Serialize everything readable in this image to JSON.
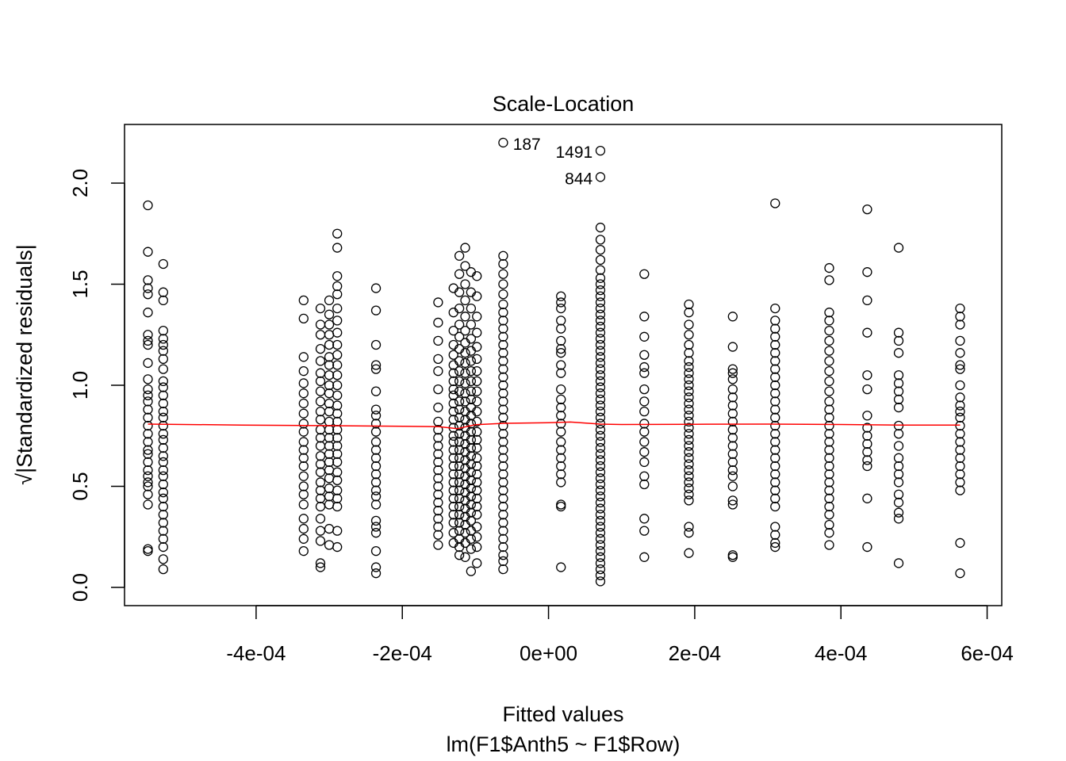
{
  "chart_data": {
    "type": "scatter",
    "title": "Scale-Location",
    "xlabel": "Fitted values",
    "subtitle": "lm(F1$Anth5 ~ F1$Row)",
    "ylabel": "√|Standardized residuals|",
    "xlim": [
      -0.00058,
      0.00062
    ],
    "ylim": [
      -0.09,
      2.29
    ],
    "x_ticks": [
      -0.0004,
      -0.0002,
      0,
      0.0002,
      0.0004,
      0.0006
    ],
    "x_tick_labels": [
      "-4e-04",
      "-2e-04",
      "0e+00",
      "2e-04",
      "4e-04",
      "6e-04"
    ],
    "y_ticks": [
      0.0,
      0.5,
      1.0,
      1.5,
      2.0
    ],
    "y_tick_labels": [
      "0.0",
      "0.5",
      "1.0",
      "1.5",
      "2.0"
    ],
    "grid": false,
    "colors": {
      "points": "#000000",
      "smoother": "#ff0000",
      "axes": "#000000"
    },
    "annotations": [
      {
        "label": "187",
        "x": -6.17e-05,
        "y": 2.2,
        "side": "right"
      },
      {
        "label": "1491",
        "x": 7.12e-05,
        "y": 2.16,
        "side": "left"
      },
      {
        "label": "844",
        "x": 7.12e-05,
        "y": 2.03,
        "side": "left"
      }
    ],
    "fitted_groups": [
      {
        "x": -0.000548,
        "y": [
          1.89,
          1.66,
          1.52,
          1.48,
          1.45,
          1.36,
          1.25,
          1.22,
          1.2,
          1.11,
          1.03,
          0.98,
          0.95,
          0.92,
          0.88,
          0.84,
          0.8,
          0.76,
          0.72,
          0.68,
          0.66,
          0.62,
          0.58,
          0.55,
          0.52,
          0.5,
          0.46,
          0.41,
          0.19,
          0.18
        ]
      },
      {
        "x": -0.000527,
        "y": [
          1.6,
          1.46,
          1.42,
          1.27,
          1.23,
          1.2,
          1.17,
          1.13,
          1.08,
          1.02,
          0.99,
          0.95,
          0.91,
          0.87,
          0.84,
          0.8,
          0.76,
          0.73,
          0.69,
          0.65,
          0.62,
          0.58,
          0.55,
          0.51,
          0.47,
          0.44,
          0.4,
          0.36,
          0.32,
          0.28,
          0.24,
          0.2,
          0.14,
          0.09
        ]
      },
      {
        "x": -0.000335,
        "y": [
          1.42,
          1.33,
          1.14,
          1.07,
          1.01,
          0.96,
          0.91,
          0.86,
          0.81,
          0.77,
          0.72,
          0.68,
          0.64,
          0.6,
          0.55,
          0.5,
          0.46,
          0.41,
          0.34,
          0.29,
          0.24,
          0.18
        ]
      },
      {
        "x": -0.000312,
        "y": [
          1.38,
          1.3,
          1.25,
          1.18,
          1.12,
          1.06,
          1.02,
          0.97,
          0.92,
          0.87,
          0.83,
          0.78,
          0.74,
          0.7,
          0.65,
          0.61,
          0.57,
          0.52,
          0.48,
          0.44,
          0.4,
          0.34,
          0.28,
          0.23,
          0.12,
          0.1
        ]
      },
      {
        "x": -0.0003,
        "y": [
          1.42,
          1.35,
          1.3,
          1.25,
          1.2,
          1.14,
          1.1,
          1.05,
          1.0,
          0.96,
          0.91,
          0.87,
          0.82,
          0.78,
          0.74,
          0.7,
          0.66,
          0.62,
          0.58,
          0.54,
          0.49,
          0.45,
          0.41,
          0.29,
          0.21
        ]
      },
      {
        "x": -0.000289,
        "y": [
          1.75,
          1.68,
          1.54,
          1.49,
          1.45,
          1.38,
          1.32,
          1.26,
          1.2,
          1.15,
          1.1,
          1.05,
          1.0,
          0.95,
          0.9,
          0.86,
          0.82,
          0.78,
          0.74,
          0.7,
          0.66,
          0.62,
          0.57,
          0.53,
          0.48,
          0.44,
          0.4,
          0.28,
          0.2
        ]
      },
      {
        "x": -0.000236,
        "y": [
          1.48,
          1.37,
          1.2,
          1.1,
          1.08,
          0.97,
          0.88,
          0.85,
          0.81,
          0.77,
          0.72,
          0.68,
          0.64,
          0.6,
          0.56,
          0.52,
          0.48,
          0.45,
          0.41,
          0.33,
          0.3,
          0.27,
          0.18,
          0.1,
          0.07
        ]
      },
      {
        "x": -0.000151,
        "y": [
          1.41,
          1.31,
          1.22,
          1.13,
          1.07,
          0.98,
          0.89,
          0.82,
          0.78,
          0.74,
          0.7,
          0.66,
          0.62,
          0.58,
          0.54,
          0.5,
          0.46,
          0.42,
          0.38,
          0.34,
          0.3,
          0.26,
          0.21
        ]
      },
      {
        "x": -0.00013,
        "y": [
          1.48,
          1.36,
          1.27,
          1.2,
          1.15,
          1.1,
          1.06,
          1.02,
          0.98,
          0.95,
          0.91,
          0.87,
          0.83,
          0.79,
          0.75,
          0.72,
          0.68,
          0.64,
          0.6,
          0.56,
          0.52,
          0.48,
          0.44,
          0.4,
          0.36,
          0.32,
          0.27,
          0.22
        ]
      },
      {
        "x": -0.000122,
        "y": [
          1.64,
          1.55,
          1.46,
          1.38,
          1.3,
          1.24,
          1.18,
          1.12,
          1.07,
          1.02,
          0.97,
          0.92,
          0.88,
          0.84,
          0.8,
          0.76,
          0.72,
          0.68,
          0.64,
          0.6,
          0.56,
          0.52,
          0.48,
          0.44,
          0.4,
          0.36,
          0.32,
          0.28,
          0.24,
          0.2,
          0.16
        ]
      },
      {
        "x": -0.000114,
        "y": [
          1.68,
          1.59,
          1.5,
          1.42,
          1.34,
          1.27,
          1.21,
          1.16,
          1.11,
          1.06,
          1.01,
          0.96,
          0.92,
          0.87,
          0.83,
          0.79,
          0.75,
          0.71,
          0.67,
          0.63,
          0.59,
          0.55,
          0.51,
          0.47,
          0.43,
          0.39,
          0.35,
          0.31,
          0.27,
          0.22,
          0.15
        ]
      },
      {
        "x": -0.000106,
        "y": [
          1.56,
          1.46,
          1.38,
          1.3,
          1.23,
          1.17,
          1.12,
          1.07,
          1.02,
          0.97,
          0.93,
          0.89,
          0.85,
          0.81,
          0.77,
          0.73,
          0.69,
          0.65,
          0.61,
          0.57,
          0.53,
          0.49,
          0.45,
          0.41,
          0.37,
          0.33,
          0.28,
          0.24,
          0.19,
          0.08
        ]
      },
      {
        "x": -9.8e-05,
        "y": [
          1.54,
          1.44,
          1.34,
          1.26,
          1.19,
          1.13,
          1.07,
          1.02,
          0.97,
          0.92,
          0.87,
          0.82,
          0.77,
          0.73,
          0.69,
          0.64,
          0.6,
          0.56,
          0.52,
          0.48,
          0.44,
          0.4,
          0.36,
          0.3,
          0.25,
          0.2,
          0.12
        ]
      },
      {
        "x": -6.2e-05,
        "y": [
          1.64,
          1.6,
          1.55,
          1.5,
          1.45,
          1.4,
          1.36,
          1.32,
          1.28,
          1.24,
          1.2,
          1.16,
          1.12,
          1.08,
          1.04,
          1.0,
          0.96,
          0.92,
          0.88,
          0.84,
          0.8,
          0.76,
          0.72,
          0.68,
          0.64,
          0.6,
          0.56,
          0.52,
          0.48,
          0.44,
          0.4,
          0.36,
          0.32,
          0.28,
          0.24,
          0.2,
          0.16,
          0.13,
          0.09,
          2.2
        ]
      },
      {
        "x": 1.7e-05,
        "y": [
          1.44,
          1.41,
          1.38,
          1.32,
          1.28,
          1.22,
          1.18,
          1.16,
          1.1,
          1.06,
          0.98,
          0.93,
          0.89,
          0.85,
          0.81,
          0.77,
          0.72,
          0.68,
          0.64,
          0.6,
          0.56,
          0.52,
          0.41,
          0.4,
          0.1
        ]
      },
      {
        "x": 7.1e-05,
        "y": [
          2.16,
          2.03,
          1.78,
          1.72,
          1.67,
          1.62,
          1.57,
          1.53,
          1.5,
          1.47,
          1.44,
          1.41,
          1.38,
          1.35,
          1.32,
          1.29,
          1.26,
          1.23,
          1.2,
          1.17,
          1.14,
          1.11,
          1.08,
          1.05,
          1.02,
          0.99,
          0.96,
          0.93,
          0.9,
          0.87,
          0.84,
          0.81,
          0.78,
          0.75,
          0.72,
          0.69,
          0.66,
          0.63,
          0.6,
          0.57,
          0.54,
          0.51,
          0.48,
          0.45,
          0.42,
          0.39,
          0.36,
          0.33,
          0.3,
          0.27,
          0.24,
          0.21,
          0.18,
          0.15,
          0.12,
          0.09,
          0.06,
          0.03
        ]
      },
      {
        "x": 0.000131,
        "y": [
          1.55,
          1.34,
          1.24,
          1.15,
          1.09,
          1.06,
          0.98,
          0.92,
          0.87,
          0.81,
          0.77,
          0.72,
          0.67,
          0.62,
          0.55,
          0.51,
          0.34,
          0.28,
          0.15
        ]
      },
      {
        "x": 0.000192,
        "y": [
          1.4,
          1.36,
          1.3,
          1.25,
          1.2,
          1.16,
          1.12,
          1.09,
          1.06,
          1.03,
          1.0,
          0.97,
          0.94,
          0.91,
          0.88,
          0.85,
          0.82,
          0.79,
          0.76,
          0.73,
          0.7,
          0.67,
          0.64,
          0.61,
          0.58,
          0.55,
          0.52,
          0.49,
          0.46,
          0.43,
          0.3,
          0.27,
          0.17
        ]
      },
      {
        "x": 0.000252,
        "y": [
          1.34,
          1.19,
          1.08,
          1.06,
          1.03,
          0.98,
          0.94,
          0.9,
          0.86,
          0.82,
          0.78,
          0.74,
          0.7,
          0.66,
          0.62,
          0.58,
          0.55,
          0.5,
          0.43,
          0.41,
          0.16,
          0.15
        ]
      },
      {
        "x": 0.00031,
        "y": [
          1.9,
          1.38,
          1.32,
          1.28,
          1.24,
          1.2,
          1.16,
          1.12,
          1.08,
          1.04,
          1.0,
          0.96,
          0.92,
          0.88,
          0.84,
          0.8,
          0.76,
          0.72,
          0.68,
          0.64,
          0.6,
          0.56,
          0.52,
          0.48,
          0.44,
          0.4,
          0.3,
          0.26,
          0.22,
          0.2
        ]
      },
      {
        "x": 0.000384,
        "y": [
          1.58,
          1.52,
          1.36,
          1.32,
          1.27,
          1.22,
          1.17,
          1.12,
          1.07,
          1.02,
          0.97,
          0.92,
          0.88,
          0.84,
          0.8,
          0.76,
          0.72,
          0.68,
          0.64,
          0.6,
          0.56,
          0.52,
          0.48,
          0.44,
          0.4,
          0.36,
          0.31,
          0.27,
          0.21
        ]
      },
      {
        "x": 0.000436,
        "y": [
          1.87,
          1.56,
          1.42,
          1.26,
          1.05,
          0.98,
          0.85,
          0.79,
          0.75,
          0.71,
          0.67,
          0.63,
          0.6,
          0.44,
          0.2
        ]
      },
      {
        "x": 0.000479,
        "y": [
          1.68,
          1.26,
          1.22,
          1.16,
          1.05,
          1.01,
          0.97,
          0.93,
          0.89,
          0.8,
          0.76,
          0.7,
          0.64,
          0.6,
          0.56,
          0.52,
          0.46,
          0.42,
          0.37,
          0.34,
          0.12
        ]
      },
      {
        "x": 0.000563,
        "y": [
          1.38,
          1.34,
          1.3,
          1.22,
          1.16,
          1.1,
          1.08,
          1.0,
          0.94,
          0.9,
          0.87,
          0.84,
          0.8,
          0.76,
          0.72,
          0.68,
          0.64,
          0.6,
          0.56,
          0.52,
          0.48,
          0.22,
          0.07
        ]
      }
    ],
    "smoother": {
      "x": [
        -0.000548,
        -0.00042,
        -0.0003,
        -0.0002,
        -0.00015,
        -0.000125,
        -0.0001,
        -6e-05,
        0.0,
        3e-05,
        7.1e-05,
        0.0001,
        0.0002,
        0.0003,
        0.0004,
        0.00048,
        0.000563
      ],
      "y": [
        0.808,
        0.803,
        0.8,
        0.797,
        0.795,
        0.785,
        0.805,
        0.812,
        0.815,
        0.818,
        0.808,
        0.806,
        0.807,
        0.808,
        0.806,
        0.803,
        0.803
      ]
    }
  }
}
